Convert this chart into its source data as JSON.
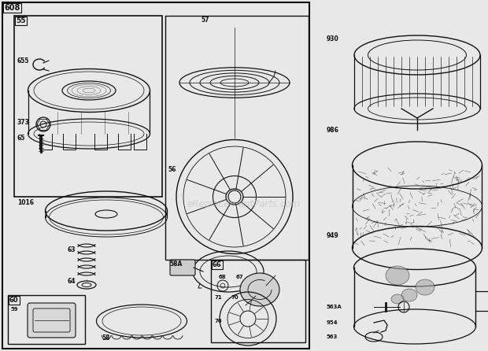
{
  "bg_color": "#e8e8e8",
  "line_color": "#111111",
  "watermark": "eReplacementParts.com",
  "watermark_color": "#bbbbbb",
  "figsize": [
    6.2,
    4.46
  ],
  "dpi": 100
}
